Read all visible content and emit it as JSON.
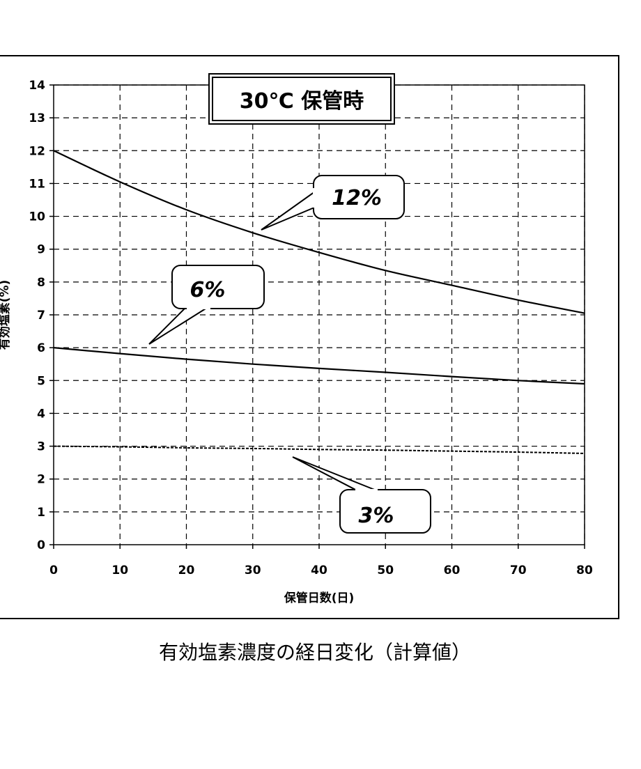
{
  "chart_data": {
    "type": "line",
    "title": "30℃  保管時",
    "caption": "有効塩素濃度の経日変化（計算値）",
    "xlabel": "保管日数(日)",
    "ylabel": "有効塩素(%)",
    "xlim": [
      0,
      80
    ],
    "ylim": [
      0,
      14
    ],
    "x_ticks": [
      0,
      10,
      20,
      30,
      40,
      50,
      60,
      70,
      80
    ],
    "y_ticks": [
      0,
      1,
      2,
      3,
      4,
      5,
      6,
      7,
      8,
      9,
      10,
      11,
      12,
      13,
      14
    ],
    "grid": true,
    "x": [
      0,
      10,
      20,
      30,
      40,
      50,
      60,
      70,
      80
    ],
    "series": [
      {
        "name": "12%",
        "values": [
          12.0,
          11.05,
          10.2,
          9.5,
          8.9,
          8.35,
          7.9,
          7.45,
          7.05
        ],
        "style": "solid"
      },
      {
        "name": "6%",
        "values": [
          6.0,
          5.82,
          5.65,
          5.5,
          5.37,
          5.25,
          5.12,
          5.0,
          4.9
        ],
        "style": "solid"
      },
      {
        "name": "3%",
        "values": [
          3.0,
          2.98,
          2.95,
          2.93,
          2.9,
          2.88,
          2.85,
          2.82,
          2.78
        ],
        "style": "dashed"
      }
    ],
    "callouts": [
      "12%",
      "6%",
      "3%"
    ]
  }
}
